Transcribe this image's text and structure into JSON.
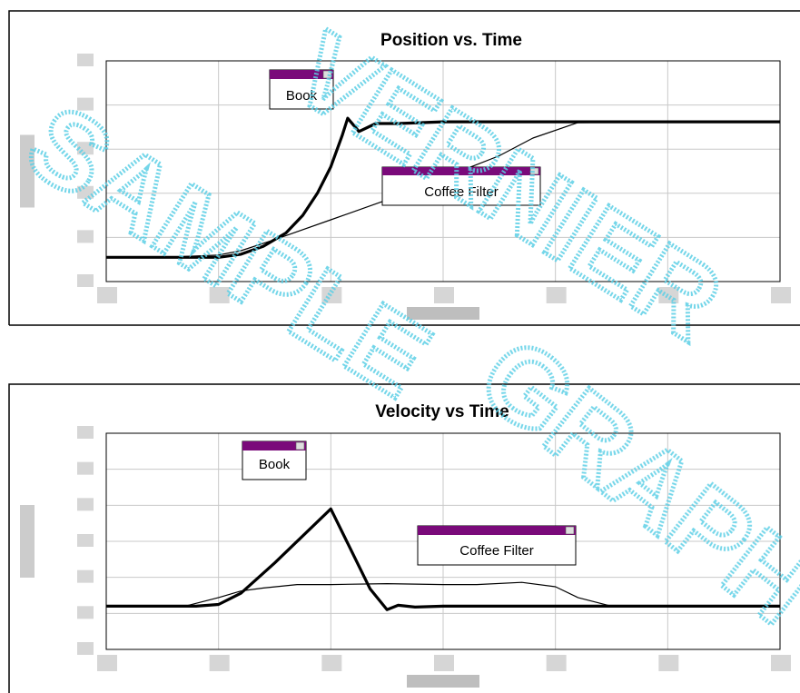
{
  "colors": {
    "background": "#ffffff",
    "grid": "#c8c8c8",
    "plot_border": "#000000",
    "label_titlebar": "#7a0a7a",
    "watermark": "#5ccfe6",
    "blurred_ticks": "#b4b4b4"
  },
  "watermark": {
    "text": "VERNIER SAMPLE GRAPH",
    "line1": "SAMPLE",
    "line2": "VERNIER",
    "line3": "GRAPH"
  },
  "chart_data": [
    {
      "type": "line",
      "title": "Position vs. Time",
      "xlabel": "",
      "ylabel": "",
      "xlim": [
        0,
        6
      ],
      "ylim": [
        0,
        5
      ],
      "grid": true,
      "series": [
        {
          "name": "Book",
          "style": "thick",
          "x": [
            0,
            0.5,
            1.0,
            1.2,
            1.4,
            1.6,
            1.75,
            1.88,
            2.0,
            2.1,
            2.15,
            2.25,
            2.4,
            2.6,
            3.0,
            4.0,
            5.0,
            6.0
          ],
          "y": [
            0.55,
            0.55,
            0.55,
            0.62,
            0.8,
            1.1,
            1.5,
            2.0,
            2.6,
            3.3,
            3.7,
            3.4,
            3.58,
            3.58,
            3.62,
            3.62,
            3.62,
            3.62
          ]
        },
        {
          "name": "Coffee Filter",
          "style": "thin",
          "x": [
            0,
            0.5,
            1.0,
            1.2,
            1.5,
            2.0,
            2.5,
            3.0,
            3.5,
            3.8,
            4.2,
            5.0,
            6.0
          ],
          "y": [
            0.55,
            0.55,
            0.6,
            0.7,
            0.95,
            1.4,
            1.85,
            2.35,
            2.85,
            3.25,
            3.6,
            3.62,
            3.62
          ]
        }
      ],
      "labels": [
        {
          "text": "Book"
        },
        {
          "text": "Coffee Filter"
        }
      ]
    },
    {
      "type": "line",
      "title": "Velocity vs Time",
      "xlabel": "",
      "ylabel": "",
      "xlim": [
        0,
        6
      ],
      "ylim": [
        -1,
        4
      ],
      "grid": true,
      "series": [
        {
          "name": "Book",
          "style": "thick",
          "x": [
            0,
            0.8,
            1.0,
            1.2,
            1.5,
            2.0,
            2.35,
            2.5,
            2.6,
            2.75,
            3.0,
            4.0,
            5.0,
            6.0
          ],
          "y": [
            0,
            0,
            0.04,
            0.3,
            1.0,
            2.25,
            0.4,
            -0.08,
            0.02,
            -0.02,
            0,
            0,
            0,
            0
          ]
        },
        {
          "name": "Coffee Filter",
          "style": "thin",
          "x": [
            0,
            0.7,
            1.0,
            1.2,
            1.4,
            1.7,
            2.0,
            2.5,
            3.0,
            3.3,
            3.7,
            4.0,
            4.2,
            4.5,
            5.0,
            6.0
          ],
          "y": [
            0,
            0,
            0.2,
            0.35,
            0.42,
            0.5,
            0.5,
            0.52,
            0.5,
            0.5,
            0.55,
            0.45,
            0.2,
            0,
            0,
            0
          ]
        }
      ],
      "labels": [
        {
          "text": "Book"
        },
        {
          "text": "Coffee Filter"
        }
      ]
    }
  ]
}
